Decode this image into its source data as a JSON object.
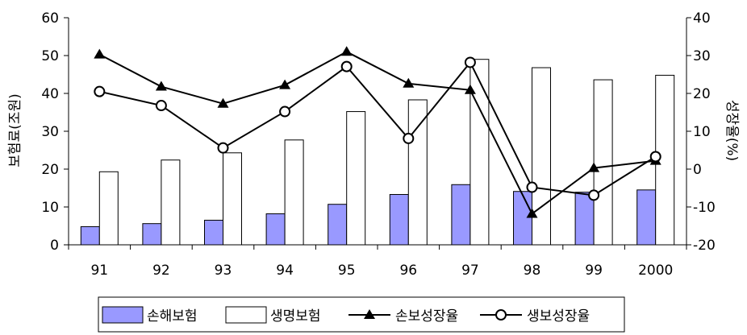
{
  "chart_data": {
    "type": "bar",
    "categories": [
      "91",
      "92",
      "93",
      "94",
      "95",
      "96",
      "97",
      "98",
      "99",
      "2000"
    ],
    "ylabel": "보험료(조원)",
    "y2label": "성장율(%)",
    "ylim": [
      0,
      60
    ],
    "y2lim": [
      -20,
      40
    ],
    "yticks": [
      0,
      10,
      20,
      30,
      40,
      50,
      60
    ],
    "y2ticks": [
      -20,
      -10,
      0,
      10,
      20,
      30,
      40
    ],
    "grid": false,
    "legend_position": "bottom",
    "series": [
      {
        "name": "손해보험",
        "kind": "bar",
        "axis": "left",
        "color": "#9999ff",
        "values": [
          4.8,
          5.6,
          6.5,
          8.2,
          10.7,
          13.3,
          15.9,
          14.1,
          13.9,
          14.5
        ]
      },
      {
        "name": "생명보험",
        "kind": "bar",
        "axis": "left",
        "color": "#ffffff",
        "values": [
          19.3,
          22.4,
          24.3,
          27.7,
          35.2,
          38.3,
          49.0,
          46.8,
          43.6,
          44.8
        ]
      },
      {
        "name": "손보성장율",
        "kind": "line",
        "axis": "right",
        "marker": "triangle",
        "color": "#000000",
        "values": [
          30.3,
          21.8,
          17.3,
          22.2,
          31.0,
          22.6,
          20.9,
          -11.8,
          0.3,
          2.2
        ]
      },
      {
        "name": "생보성장율",
        "kind": "line",
        "axis": "right",
        "marker": "circle",
        "color": "#000000",
        "values": [
          20.5,
          16.8,
          5.6,
          15.2,
          27.1,
          8.1,
          28.2,
          -4.8,
          -6.9,
          3.3
        ]
      }
    ]
  }
}
